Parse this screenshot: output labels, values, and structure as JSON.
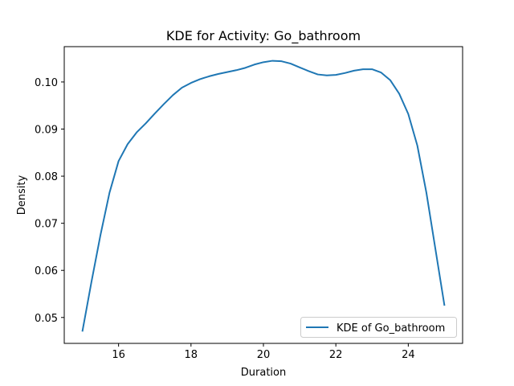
{
  "chart_data": {
    "type": "line",
    "title": "KDE for Activity: Go_bathroom",
    "xlabel": "Duration",
    "ylabel": "Density",
    "xlim": [
      14.5,
      25.5
    ],
    "ylim": [
      0.0445,
      0.1075
    ],
    "xticks": [
      16,
      18,
      20,
      22,
      24
    ],
    "yticks": [
      0.05,
      0.06,
      0.07,
      0.08,
      0.09,
      0.1
    ],
    "ytick_labels": [
      "0.05",
      "0.06",
      "0.07",
      "0.08",
      "0.09",
      "0.10"
    ],
    "grid": false,
    "legend_position": "lower-right",
    "series": [
      {
        "name": "KDE of Go_bathroom",
        "color": "#1f77b4",
        "x": [
          15.0,
          15.25,
          15.5,
          15.75,
          16.0,
          16.25,
          16.5,
          16.75,
          17.0,
          17.25,
          17.5,
          17.75,
          18.0,
          18.25,
          18.5,
          18.75,
          19.0,
          19.25,
          19.5,
          19.75,
          20.0,
          20.25,
          20.5,
          20.75,
          21.0,
          21.25,
          21.5,
          21.75,
          22.0,
          22.25,
          22.5,
          22.75,
          23.0,
          23.25,
          23.5,
          23.75,
          24.0,
          24.25,
          24.5,
          24.75,
          25.0
        ],
        "y": [
          0.047,
          0.0575,
          0.0675,
          0.0765,
          0.0832,
          0.0868,
          0.0893,
          0.0912,
          0.0933,
          0.0953,
          0.0972,
          0.0988,
          0.0998,
          0.1006,
          0.1012,
          0.1017,
          0.1021,
          0.1025,
          0.103,
          0.1037,
          0.1042,
          0.1045,
          0.1044,
          0.1039,
          0.1031,
          0.1023,
          0.1016,
          0.1014,
          0.1015,
          0.1019,
          0.1024,
          0.1027,
          0.1027,
          0.102,
          0.1004,
          0.0975,
          0.0932,
          0.0865,
          0.0765,
          0.0645,
          0.0525
        ]
      }
    ]
  }
}
